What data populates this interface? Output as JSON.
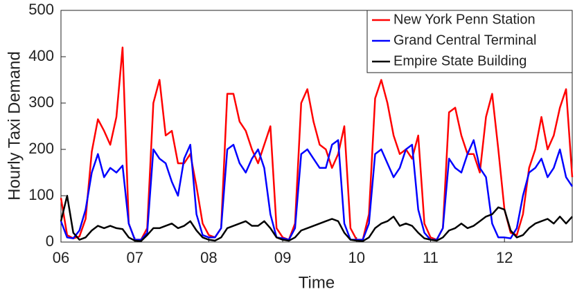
{
  "chart_data": {
    "type": "line",
    "xlabel": "Time",
    "ylabel": "Hourly Taxi Demand",
    "x": [
      0,
      2,
      4,
      6,
      8,
      10,
      12,
      14,
      16,
      18,
      20,
      22,
      24,
      26,
      28,
      30,
      32,
      34,
      36,
      38,
      40,
      42,
      44,
      46,
      48,
      50,
      52,
      54,
      56,
      58,
      60,
      62,
      64,
      66,
      68,
      70,
      72,
      74,
      76,
      78,
      80,
      82,
      84,
      86,
      88,
      90,
      92,
      94,
      96,
      98,
      100,
      102,
      104,
      106,
      108,
      110,
      112,
      114,
      116,
      118,
      120,
      122,
      124,
      126,
      128,
      130,
      132,
      134,
      136,
      138,
      140,
      142,
      144,
      146,
      148,
      150,
      152,
      154,
      156,
      158,
      160,
      162,
      164,
      166
    ],
    "xlim": [
      0,
      166
    ],
    "xticks": [
      {
        "value": 0,
        "label": "06"
      },
      {
        "value": 24,
        "label": "07"
      },
      {
        "value": 48,
        "label": "08"
      },
      {
        "value": 72,
        "label": "09"
      },
      {
        "value": 96,
        "label": "10"
      },
      {
        "value": 120,
        "label": "11"
      },
      {
        "value": 144,
        "label": "12"
      }
    ],
    "ylim": [
      0,
      500
    ],
    "yticks": [
      0,
      100,
      200,
      300,
      400,
      500
    ],
    "legend": "top-right",
    "series": [
      {
        "name": "New York Penn Station",
        "color": "#ff0000",
        "values": [
          95,
          15,
          8,
          12,
          50,
          195,
          265,
          240,
          210,
          270,
          420,
          40,
          5,
          5,
          30,
          300,
          350,
          230,
          240,
          170,
          170,
          190,
          120,
          40,
          15,
          10,
          30,
          320,
          320,
          260,
          240,
          200,
          170,
          210,
          250,
          30,
          10,
          5,
          40,
          300,
          330,
          260,
          210,
          200,
          160,
          190,
          250,
          30,
          5,
          5,
          60,
          310,
          350,
          300,
          230,
          190,
          200,
          180,
          230,
          40,
          10,
          5,
          30,
          280,
          290,
          230,
          190,
          190,
          150,
          270,
          320,
          200,
          70,
          20,
          15,
          60,
          160,
          200,
          270,
          200,
          230,
          290,
          330,
          140
        ]
      },
      {
        "name": "Grand Central Terminal",
        "color": "#0000ff",
        "values": [
          45,
          10,
          8,
          25,
          70,
          150,
          190,
          140,
          160,
          150,
          165,
          40,
          5,
          5,
          20,
          200,
          180,
          170,
          130,
          100,
          180,
          210,
          60,
          15,
          10,
          10,
          30,
          200,
          210,
          170,
          150,
          180,
          200,
          160,
          60,
          10,
          8,
          5,
          30,
          190,
          200,
          180,
          160,
          160,
          210,
          220,
          40,
          5,
          5,
          5,
          40,
          190,
          200,
          170,
          140,
          160,
          200,
          210,
          70,
          20,
          5,
          5,
          30,
          180,
          160,
          150,
          190,
          220,
          160,
          140,
          40,
          10,
          10,
          8,
          30,
          100,
          150,
          160,
          180,
          140,
          160,
          200,
          140,
          120
        ]
      },
      {
        "name": "Empire State Building",
        "color": "#000000",
        "values": [
          45,
          100,
          20,
          5,
          10,
          25,
          35,
          30,
          35,
          30,
          28,
          10,
          3,
          2,
          15,
          30,
          30,
          35,
          40,
          30,
          35,
          45,
          25,
          10,
          5,
          3,
          10,
          30,
          35,
          40,
          45,
          35,
          35,
          45,
          30,
          10,
          5,
          3,
          10,
          25,
          30,
          35,
          40,
          45,
          50,
          45,
          20,
          5,
          3,
          2,
          10,
          30,
          40,
          45,
          55,
          35,
          40,
          35,
          20,
          8,
          5,
          3,
          10,
          25,
          30,
          40,
          30,
          35,
          45,
          55,
          60,
          75,
          70,
          25,
          10,
          15,
          30,
          40,
          45,
          50,
          40,
          55,
          40,
          55
        ]
      }
    ]
  }
}
